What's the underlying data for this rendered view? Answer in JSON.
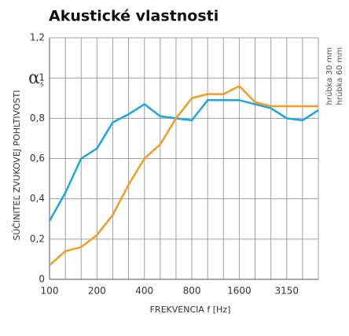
{
  "chart_data": {
    "type": "line",
    "title": "Akustické vlastnosti",
    "ylabel": "SÚČINITEĽ ZVUKOVEJ POHLTIVOSTI",
    "y_symbol": "α",
    "y_symbol_sub": "s",
    "xlabel": "FREKVENCIA f [Hz]",
    "categories": [
      100,
      null,
      null,
      200,
      null,
      null,
      400,
      null,
      null,
      800,
      null,
      null,
      1600,
      null,
      null,
      3150,
      null,
      null
    ],
    "series": [
      {
        "name": "hrúbka 60 mm",
        "color": "#1aa7e0",
        "values": [
          0.29,
          0.43,
          0.6,
          0.65,
          0.78,
          0.82,
          0.87,
          0.81,
          0.8,
          0.79,
          0.89,
          0.89,
          0.89,
          0.87,
          0.85,
          0.8,
          0.79,
          0.84
        ]
      },
      {
        "name": "hrúbka 30 mm",
        "color": "#f59a23",
        "values": [
          0.07,
          0.14,
          0.16,
          0.22,
          0.32,
          0.47,
          0.6,
          0.67,
          0.8,
          0.9,
          0.92,
          0.92,
          0.96,
          0.88,
          0.86,
          0.86,
          0.86,
          0.86
        ]
      }
    ],
    "ylim": [
      0,
      1.2
    ],
    "yticks": [
      0,
      {
        "value": 0.2,
        "label": "0,2"
      },
      {
        "value": 0.4,
        "label": "0,4"
      },
      {
        "value": 0.6,
        "label": "0,6"
      },
      {
        "value": 0.8,
        "label": "0,8"
      },
      1,
      {
        "value": 1.2,
        "label": "1,2"
      }
    ],
    "grid": true
  }
}
